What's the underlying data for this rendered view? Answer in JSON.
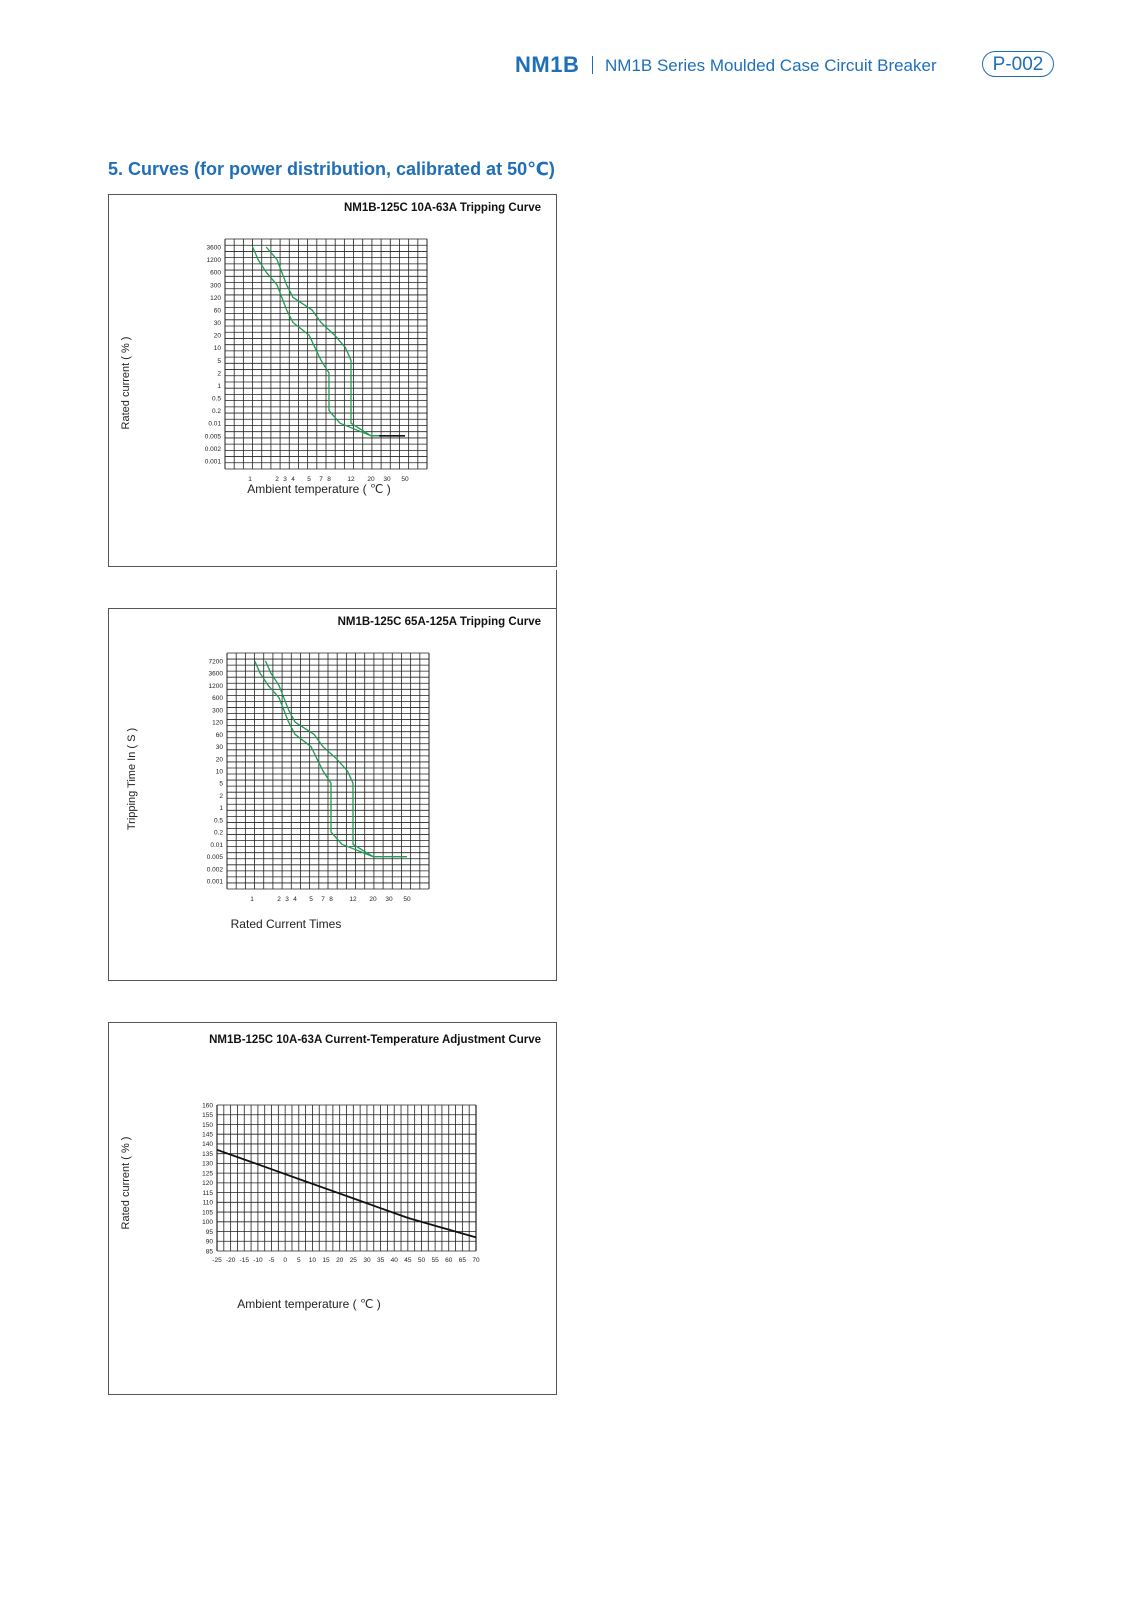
{
  "header": {
    "brand": "NM1B",
    "series_title": "NM1B Series Moulded Case Circuit Breaker",
    "page_badge": "P-002"
  },
  "section_title": "5. Curves (for power distribution, calibrated at 50℃)",
  "colors": {
    "accent": "#1f6fb8",
    "curve_green": "#1f9a50",
    "curve_black": "#111111",
    "grid": "#222222"
  },
  "chart_data": [
    {
      "type": "line",
      "title": "NM1B-125C 10A-63A Tripping Curve",
      "xlabel": "Ambient temperature ( ℃ )",
      "ylabel": "Rated current ( % )",
      "y_ticks": [
        "3600",
        "1200",
        "600",
        "300",
        "120",
        "60",
        "30",
        "20",
        "10",
        "5",
        "2",
        "1",
        "0.5",
        "0.2",
        "0.01",
        "0.005",
        "0.002",
        "0.001"
      ],
      "x_ticks": [
        1,
        2,
        3,
        4,
        5,
        7,
        8,
        12,
        20,
        30,
        50
      ],
      "y_scale": "categorical (as printed)",
      "series": [
        {
          "color": "green",
          "points": [
            [
              1.1,
              3600
            ],
            [
              1.3,
              1200
            ],
            [
              1.6,
              600
            ],
            [
              2,
              300
            ],
            [
              2.6,
              120
            ],
            [
              3.2,
              60
            ],
            [
              4,
              30
            ],
            [
              5,
              20
            ],
            [
              6,
              10
            ],
            [
              7,
              5
            ],
            [
              8,
              2
            ],
            [
              8,
              1
            ],
            [
              8,
              0.5
            ],
            [
              8,
              0.2
            ],
            [
              10,
              0.01
            ],
            [
              20,
              0.005
            ],
            [
              50,
              0.005
            ]
          ]
        },
        {
          "color": "green",
          "points": [
            [
              1.6,
              3600
            ],
            [
              2,
              1200
            ],
            [
              2.6,
              600
            ],
            [
              3.2,
              300
            ],
            [
              4,
              120
            ],
            [
              5.5,
              60
            ],
            [
              7,
              30
            ],
            [
              9,
              20
            ],
            [
              11,
              10
            ],
            [
              12,
              5
            ],
            [
              12,
              2
            ],
            [
              12,
              1
            ],
            [
              12,
              0.5
            ],
            [
              12,
              0.2
            ],
            [
              12,
              0.01
            ],
            [
              20,
              0.005
            ],
            [
              50,
              0.005
            ]
          ]
        },
        {
          "color": "black",
          "points": [
            [
              25,
              0.005
            ],
            [
              50,
              0.005
            ]
          ]
        }
      ]
    },
    {
      "type": "line",
      "title": "NM1B-125C 65A-125A Tripping Curve",
      "xlabel": "Rated Current Times",
      "ylabel": "Tripping Time In ( S )",
      "y_ticks": [
        "7200",
        "3600",
        "1200",
        "600",
        "300",
        "120",
        "60",
        "30",
        "20",
        "10",
        "5",
        "2",
        "1",
        "0.5",
        "0.2",
        "0.01",
        "0.005",
        "0.002",
        "0.001"
      ],
      "x_ticks": [
        1,
        2,
        3,
        4,
        5,
        7,
        8,
        12,
        20,
        30,
        50
      ],
      "y_scale": "categorical (as printed)",
      "series": [
        {
          "color": "green",
          "points": [
            [
              1.1,
              7200
            ],
            [
              1.3,
              3600
            ],
            [
              1.6,
              1200
            ],
            [
              2,
              600
            ],
            [
              2.6,
              300
            ],
            [
              3.2,
              120
            ],
            [
              4,
              60
            ],
            [
              5,
              30
            ],
            [
              6,
              20
            ],
            [
              7,
              10
            ],
            [
              8,
              5
            ],
            [
              8,
              2
            ],
            [
              8,
              1
            ],
            [
              8,
              0.5
            ],
            [
              8,
              0.2
            ],
            [
              10,
              0.01
            ],
            [
              20,
              0.005
            ],
            [
              50,
              0.005
            ]
          ]
        },
        {
          "color": "green",
          "points": [
            [
              1.5,
              7200
            ],
            [
              1.7,
              3600
            ],
            [
              2,
              1200
            ],
            [
              2.6,
              600
            ],
            [
              3.2,
              300
            ],
            [
              4,
              120
            ],
            [
              5.5,
              60
            ],
            [
              7,
              30
            ],
            [
              9,
              20
            ],
            [
              11,
              10
            ],
            [
              12,
              5
            ],
            [
              12,
              2
            ],
            [
              12,
              1
            ],
            [
              12,
              0.5
            ],
            [
              12,
              0.2
            ],
            [
              12,
              0.01
            ],
            [
              20,
              0.005
            ],
            [
              50,
              0.005
            ]
          ]
        }
      ]
    },
    {
      "type": "line",
      "title": "NM1B-125C 10A-63A Current-Temperature Adjustment Curve",
      "xlabel": "Ambient temperature ( ℃ )",
      "ylabel": "Rated current ( % )",
      "x_ticks": [
        -25,
        -20,
        -15,
        -10,
        -5,
        0,
        5,
        10,
        15,
        20,
        25,
        30,
        35,
        40,
        45,
        50,
        55,
        60,
        65,
        70
      ],
      "y_ticks": [
        160,
        155,
        150,
        145,
        140,
        135,
        130,
        125,
        120,
        115,
        110,
        105,
        100,
        95,
        90,
        85
      ],
      "xlim": [
        -25,
        70
      ],
      "ylim": [
        85,
        160
      ],
      "series": [
        {
          "color": "black",
          "x": [
            -25,
            -15,
            -5,
            5,
            15,
            25,
            35,
            45,
            55,
            65,
            70
          ],
          "y": [
            137,
            132,
            127,
            122,
            117,
            112,
            107,
            102,
            98,
            94,
            92
          ]
        }
      ]
    }
  ]
}
